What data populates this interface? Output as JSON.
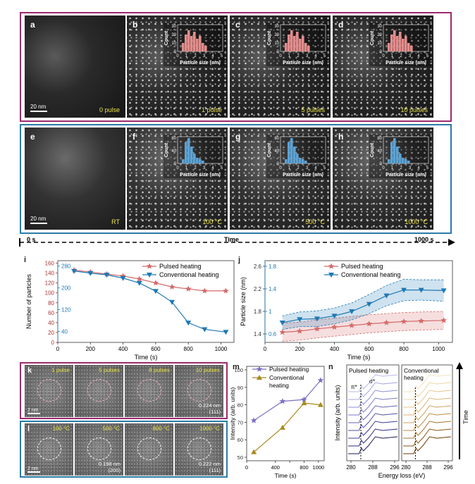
{
  "row_top": {
    "panels": [
      {
        "letter": "a",
        "condition": "0 pulse",
        "has_inset": false
      },
      {
        "letter": "b",
        "condition": "1 pulse",
        "has_inset": true
      },
      {
        "letter": "c",
        "condition": "5 pulses",
        "has_inset": true
      },
      {
        "letter": "d",
        "condition": "10 pulses",
        "has_inset": true
      }
    ],
    "scalebar": "20 nm",
    "inset_xlabel": "Particle size (nm)",
    "inset_ylabel": "Count",
    "inset_yticks": [
      "0",
      "10",
      "20",
      "30"
    ],
    "inset_xticks": [
      "0",
      "1",
      "2",
      "3",
      "4",
      "5"
    ],
    "color": "#e48c8c"
  },
  "row_mid": {
    "panels": [
      {
        "letter": "e",
        "condition": "RT",
        "has_inset": false
      },
      {
        "letter": "f",
        "condition": "100 °C",
        "has_inset": true
      },
      {
        "letter": "g",
        "condition": "500 °C",
        "has_inset": true
      },
      {
        "letter": "h",
        "condition": "1000 °C",
        "has_inset": true
      }
    ],
    "scalebar": "20 nm",
    "inset_xlabel": "Particle size (nm)",
    "inset_ylabel": "Count",
    "inset_yticks": [
      "0",
      "40",
      "80"
    ],
    "inset_xticks": [
      "0",
      "1",
      "2",
      "3",
      "4",
      "5"
    ],
    "color": "#5ba3d6"
  },
  "timeline": {
    "start": "0 s",
    "middle": "Time",
    "end": "1000 s"
  },
  "chart_data": [
    {
      "id": "i",
      "type": "line",
      "xlabel": "Time (s)",
      "ylabel": "Number of particles",
      "xticks": [
        0,
        200,
        400,
        600,
        800,
        1000
      ],
      "left_yticks": [
        0,
        20,
        40,
        60,
        80,
        100,
        120,
        140,
        160
      ],
      "right_yticks": [
        40,
        120,
        200,
        280
      ],
      "xlim": [
        0,
        1080
      ],
      "left_ylim": [
        0,
        165
      ],
      "right_ylim": [
        0,
        300
      ],
      "series": [
        {
          "name": "Pulsed heating",
          "axis": "left",
          "color": "#d46a6a",
          "marker": "star",
          "x": [
            100,
            200,
            300,
            400,
            500,
            600,
            700,
            800,
            900,
            1030
          ],
          "values": [
            146,
            142,
            138,
            134,
            128,
            120,
            112,
            108,
            104,
            104
          ]
        },
        {
          "name": "Conventional heating",
          "axis": "right",
          "color": "#1f79b4",
          "marker": "triangle",
          "x": [
            100,
            200,
            300,
            400,
            500,
            600,
            700,
            800,
            900,
            1030
          ],
          "values": [
            262,
            254,
            248,
            236,
            218,
            188,
            148,
            72,
            48,
            38
          ]
        }
      ]
    },
    {
      "id": "j",
      "type": "line",
      "xlabel": "Time (s)",
      "ylabel": "Particle size (nm)",
      "xticks": [
        0,
        200,
        400,
        600,
        800,
        1000
      ],
      "left_yticks": [
        1.4,
        1.8,
        2.2,
        2.6
      ],
      "right_yticks": [
        0.6,
        1.0,
        1.4,
        1.8
      ],
      "xlim": [
        0,
        1080
      ],
      "left_ylim": [
        1.25,
        2.7
      ],
      "right_ylim": [
        0.45,
        1.9
      ],
      "series": [
        {
          "name": "Pulsed heating",
          "axis": "left",
          "color": "#d46a6a",
          "marker": "star",
          "x": [
            100,
            200,
            300,
            400,
            500,
            600,
            700,
            800,
            900,
            1030
          ],
          "values": [
            1.43,
            1.45,
            1.49,
            1.52,
            1.55,
            1.58,
            1.6,
            1.62,
            1.63,
            1.64
          ],
          "band": [
            0.16,
            0.16,
            0.16,
            0.16,
            0.16,
            0.16,
            0.16,
            0.16,
            0.16,
            0.16
          ]
        },
        {
          "name": "Conventional heating",
          "axis": "right",
          "color": "#1f79b4",
          "marker": "triangle",
          "x": [
            100,
            200,
            300,
            400,
            500,
            600,
            700,
            800,
            900,
            1030
          ],
          "values": [
            0.8,
            0.86,
            0.87,
            0.92,
            1.0,
            1.13,
            1.28,
            1.38,
            1.38,
            1.37
          ],
          "band": [
            0.12,
            0.13,
            0.14,
            0.14,
            0.15,
            0.17,
            0.18,
            0.19,
            0.18,
            0.19
          ]
        }
      ]
    },
    {
      "id": "m",
      "type": "line",
      "xlabel": "Time (s)",
      "ylabel": "Intensity (arb. units)",
      "xticks": [
        0,
        400,
        800,
        1000
      ],
      "xticklabels": [
        "0",
        "400",
        "800",
        "1000"
      ],
      "extra_xtick": 600,
      "left_yticks": [
        50,
        60,
        70,
        80,
        90,
        100
      ],
      "xlim": [
        0,
        1080
      ],
      "left_ylim": [
        48,
        102
      ],
      "series": [
        {
          "name": "Pulsed heating",
          "axis": "left",
          "color": "#7b6fc2",
          "marker": "star",
          "x": [
            100,
            500,
            800,
            1030
          ],
          "values": [
            71,
            82,
            83,
            94
          ]
        },
        {
          "name": "Conventional heating",
          "axis": "left",
          "color": "#a88a1f",
          "marker": "triangle-down",
          "x": [
            100,
            500,
            800,
            1030
          ],
          "values": [
            53,
            67,
            81,
            80
          ]
        }
      ]
    }
  ],
  "panel_k": {
    "letter": "k",
    "frames": [
      {
        "cap": "1 pulse"
      },
      {
        "cap": "5 pulses"
      },
      {
        "cap": "8 pulses"
      },
      {
        "cap": "10 pulses",
        "meas1": "0.224 nm",
        "meas2": "(111)"
      }
    ],
    "scalebar": "2 nm"
  },
  "panel_l": {
    "letter": "l",
    "frames": [
      {
        "cap": "100 °C"
      },
      {
        "cap": "500 °C",
        "meas1": "0.198 nm",
        "meas2": "(200)"
      },
      {
        "cap": "800 °C"
      },
      {
        "cap": "1000 °C",
        "meas1": "0.222 nm",
        "meas2": "(111)"
      }
    ],
    "scalebar": "2 nm"
  },
  "panel_n": {
    "letter": "n",
    "left_title": "Pulsed heating",
    "right_title": "Conventional heating",
    "pi_label": "π*",
    "sigma_label": "σ*",
    "xlabel": "Energy loss (eV)",
    "ylabel": "Intensity (arb. units)",
    "xticks": [
      "280",
      "288",
      "296"
    ],
    "time_label": "Time",
    "left_colors": [
      "#1a1a5a",
      "#2a2a80",
      "#3c3c9c",
      "#4f4fae",
      "#6464bd",
      "#7a7acb",
      "#8f8fd6",
      "#a5a5e0",
      "#babae8"
    ],
    "right_colors": [
      "#6b3a00",
      "#8a5312",
      "#a8702a",
      "#c08a43",
      "#d1a05a",
      "#ddb473",
      "#e6c68c",
      "#eed5a6",
      "#f3e2bf"
    ]
  },
  "labels": {
    "i": "i",
    "j": "j",
    "m": "m",
    "n": "n"
  }
}
